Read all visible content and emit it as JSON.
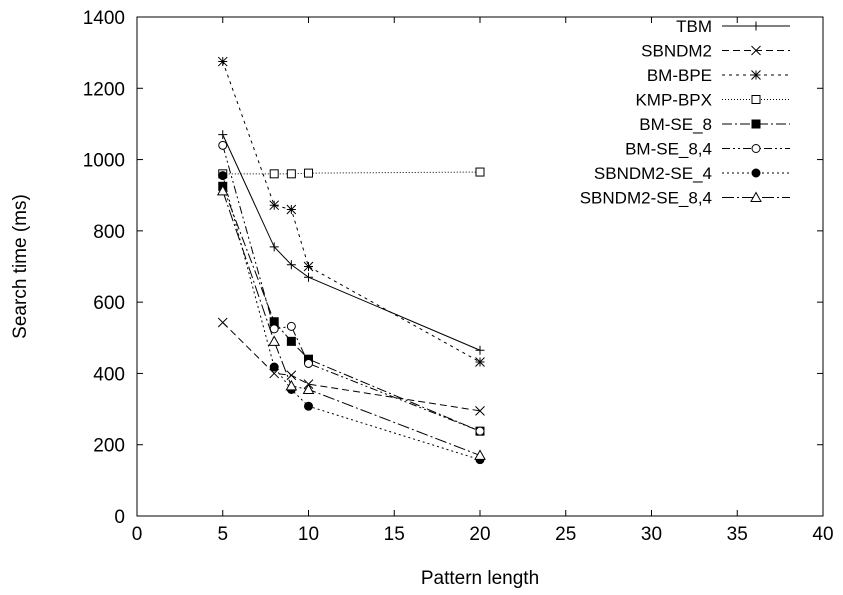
{
  "chart_data": {
    "type": "line",
    "title": "",
    "xlabel": "Pattern length",
    "ylabel": "Search time (ms)",
    "xlim": [
      0,
      40
    ],
    "ylim": [
      0,
      1400
    ],
    "xticks": [
      0,
      5,
      10,
      15,
      20,
      25,
      30,
      35,
      40
    ],
    "yticks": [
      0,
      200,
      400,
      600,
      800,
      1000,
      1200,
      1400
    ],
    "grid": false,
    "legend_position": "top-right",
    "series": [
      {
        "name": "TBM",
        "marker": "plus",
        "dash": "",
        "x": [
          5,
          8,
          9,
          10,
          20
        ],
        "y": [
          1070,
          755,
          705,
          670,
          465
        ]
      },
      {
        "name": "SBNDM2",
        "marker": "cross",
        "dash": "7,4",
        "x": [
          5,
          8,
          9,
          10,
          20
        ],
        "y": [
          543,
          400,
          395,
          370,
          295
        ]
      },
      {
        "name": "BM-BPE",
        "marker": "star",
        "dash": "3,4",
        "x": [
          5,
          8,
          9,
          10,
          20
        ],
        "y": [
          1275,
          872,
          860,
          700,
          432
        ]
      },
      {
        "name": "KMP-BPX",
        "marker": "square-open",
        "dash": "1,2",
        "x": [
          5,
          8,
          9,
          10,
          20
        ],
        "y": [
          960,
          960,
          960,
          962,
          965
        ]
      },
      {
        "name": "BM-SE_8",
        "marker": "square-filled",
        "dash": "10,3,2,3",
        "x": [
          5,
          8,
          9,
          10,
          20
        ],
        "y": [
          925,
          545,
          490,
          440,
          238
        ]
      },
      {
        "name": "BM-SE_8,4",
        "marker": "circle-open",
        "dash": "8,3,2,3,2,3",
        "x": [
          5,
          8,
          9,
          10,
          20
        ],
        "y": [
          1040,
          525,
          532,
          428,
          238
        ]
      },
      {
        "name": "SBNDM2-SE_4",
        "marker": "circle-filled",
        "dash": "2,3",
        "x": [
          5,
          8,
          9,
          10,
          20
        ],
        "y": [
          955,
          418,
          355,
          308,
          158
        ]
      },
      {
        "name": "SBNDM2-SE_8,4",
        "marker": "triangle-open",
        "dash": "12,3,2,3",
        "x": [
          5,
          8,
          9,
          10,
          20
        ],
        "y": [
          912,
          490,
          365,
          355,
          170
        ]
      }
    ]
  }
}
